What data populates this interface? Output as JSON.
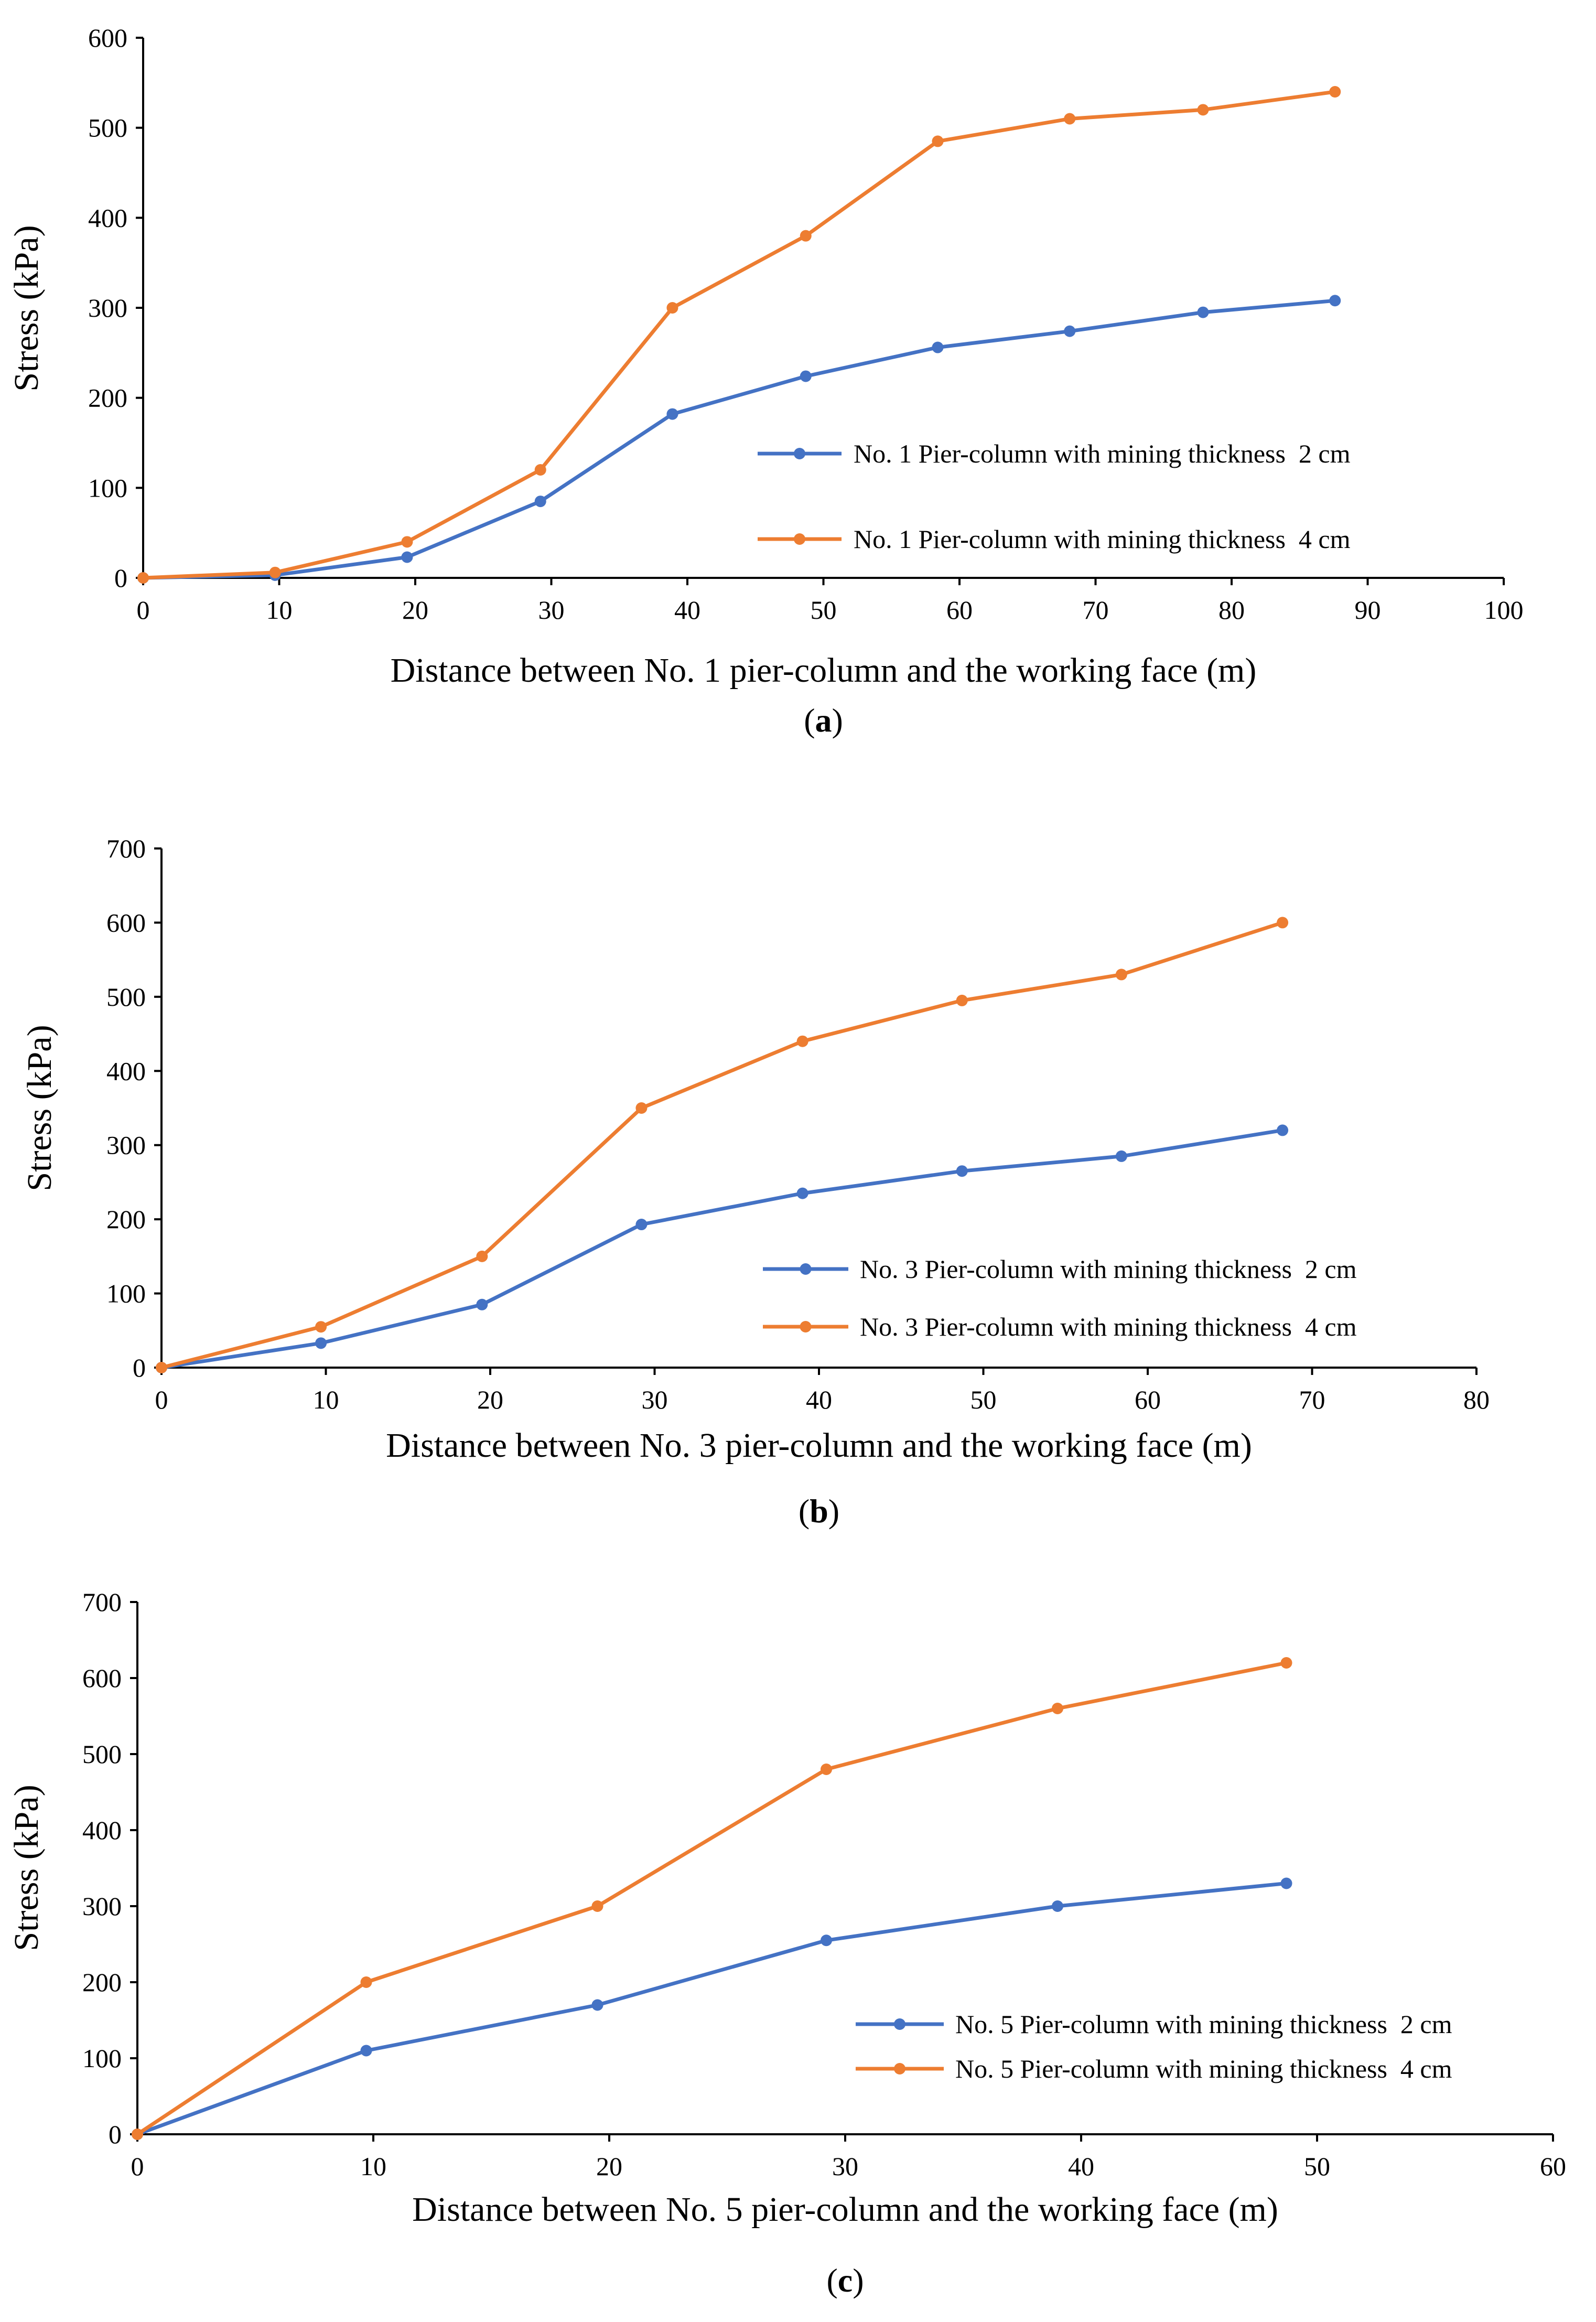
{
  "chart_data": [
    {
      "type": "line",
      "panel_label": "(a)",
      "panel_letter": "a",
      "xlabel": "Distance between No. 1 pier-column and the working face (m)",
      "ylabel": "Stress (kPa)",
      "xlim": [
        0,
        100
      ],
      "ylim": [
        0,
        600
      ],
      "x_ticks": [
        0,
        10,
        20,
        30,
        40,
        50,
        60,
        70,
        80,
        90,
        100
      ],
      "y_ticks": [
        0,
        100,
        200,
        300,
        400,
        500,
        600
      ],
      "grid": false,
      "legend_position": "lower-right",
      "series": [
        {
          "name": "No. 1 Pier-column with mining thickness  2 cm",
          "color": "#4472C4",
          "x": [
            0,
            9.7,
            19.4,
            29.2,
            38.9,
            48.7,
            58.4,
            68.1,
            77.9,
            87.6
          ],
          "y": [
            0,
            3,
            23,
            85,
            182,
            224,
            256,
            274,
            295,
            308
          ]
        },
        {
          "name": "No. 1 Pier-column with mining thickness  4 cm",
          "color": "#ED7D31",
          "x": [
            0,
            9.7,
            19.4,
            29.2,
            38.9,
            48.7,
            58.4,
            68.1,
            77.9,
            87.6
          ],
          "y": [
            0,
            6,
            40,
            120,
            300,
            380,
            485,
            510,
            520,
            540
          ]
        }
      ]
    },
    {
      "type": "line",
      "panel_label": "(b)",
      "panel_letter": "b",
      "xlabel": "Distance between No. 3 pier-column and the working face (m)",
      "ylabel": "Stress (kPa)",
      "xlim": [
        0,
        80
      ],
      "ylim": [
        0,
        700
      ],
      "x_ticks": [
        0,
        10,
        20,
        30,
        40,
        50,
        60,
        70,
        80
      ],
      "y_ticks": [
        0,
        100,
        200,
        300,
        400,
        500,
        600,
        700
      ],
      "grid": false,
      "legend_position": "lower-right",
      "series": [
        {
          "name": "No. 3 Pier-column with mining thickness  2 cm",
          "color": "#4472C4",
          "x": [
            0,
            9.7,
            19.5,
            29.2,
            39,
            48.7,
            58.4,
            68.2
          ],
          "y": [
            0,
            33,
            85,
            193,
            235,
            265,
            285,
            320
          ]
        },
        {
          "name": "No. 3 Pier-column with mining thickness  4 cm",
          "color": "#ED7D31",
          "x": [
            0,
            9.7,
            19.5,
            29.2,
            39,
            48.7,
            58.4,
            68.2
          ],
          "y": [
            0,
            55,
            150,
            350,
            440,
            495,
            530,
            600
          ]
        }
      ]
    },
    {
      "type": "line",
      "panel_label": "(c)",
      "panel_letter": "c",
      "xlabel": "Distance between No. 5 pier-column and the working face (m)",
      "ylabel": "Stress (kPa)",
      "xlim": [
        0,
        60
      ],
      "ylim": [
        0,
        700
      ],
      "x_ticks": [
        0,
        10,
        20,
        30,
        40,
        50,
        60
      ],
      "y_ticks": [
        0,
        100,
        200,
        300,
        400,
        500,
        600,
        700
      ],
      "grid": false,
      "legend_position": "lower-right",
      "series": [
        {
          "name": "No. 5 Pier-column with mining thickness  2 cm",
          "color": "#4472C4",
          "x": [
            0,
            9.7,
            19.5,
            29.2,
            39,
            48.7
          ],
          "y": [
            0,
            110,
            170,
            255,
            300,
            330
          ]
        },
        {
          "name": "No. 5 Pier-column with mining thickness  4 cm",
          "color": "#ED7D31",
          "x": [
            0,
            9.7,
            19.5,
            29.2,
            39,
            48.7
          ],
          "y": [
            0,
            200,
            300,
            480,
            560,
            620
          ]
        }
      ]
    }
  ]
}
